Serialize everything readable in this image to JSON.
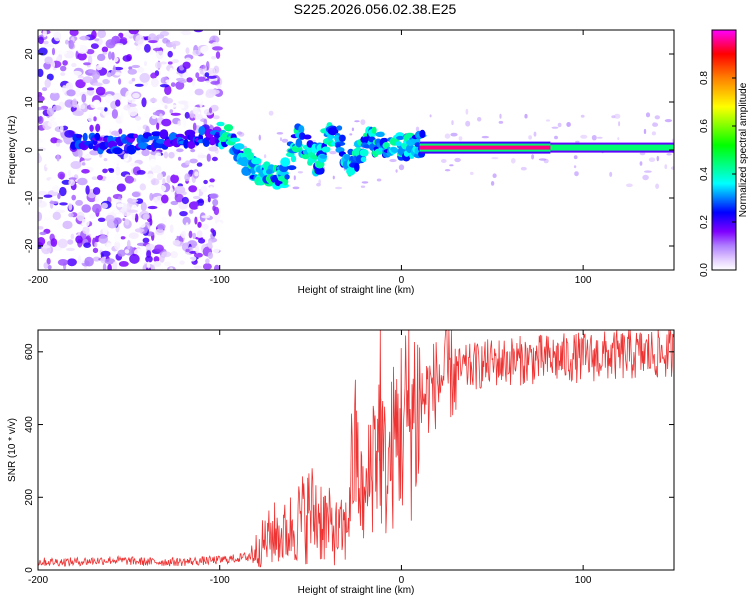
{
  "figure_title": "S225.2026.056.02.38.E25",
  "chart_data": [
    {
      "type": "heatmap",
      "title": "",
      "xlabel": "Height of straight line (km)",
      "ylabel": "Frequency (Hz)",
      "xlim": [
        -200,
        150
      ],
      "ylim": [
        -25,
        25
      ],
      "x_ticks": [
        "-200",
        "-100",
        "0",
        "100"
      ],
      "x_tick_values": [
        -200,
        -100,
        0,
        100
      ],
      "y_ticks": [
        "20",
        "10",
        "0",
        "-10",
        "-20"
      ],
      "y_tick_values": [
        20,
        10,
        0,
        -10,
        -20
      ],
      "colorbar": {
        "label": "Normalized spectral amplitude",
        "range": [
          0,
          1
        ],
        "ticks": [
          "0.0",
          "0.2",
          "0.4",
          "0.6",
          "0.8"
        ],
        "tick_values": [
          0.0,
          0.2,
          0.4,
          0.6,
          0.8
        ],
        "colormap": [
          "#ffffff",
          "#e6d2ff",
          "#b080ff",
          "#7f00ff",
          "#0000ff",
          "#00ffff",
          "#00ff00",
          "#ffff00",
          "#ff8000",
          "#ff0000",
          "#ff00ff"
        ]
      },
      "features": {
        "noise_region_x": [
          -200,
          -100
        ],
        "trace_points": [
          {
            "x": -175,
            "f": 2
          },
          {
            "x": -160,
            "f": 1
          },
          {
            "x": -140,
            "f": 2
          },
          {
            "x": -120,
            "f": 2
          },
          {
            "x": -100,
            "f": 3
          },
          {
            "x": -95,
            "f": 3
          },
          {
            "x": -88,
            "f": 0
          },
          {
            "x": -82,
            "f": -4
          },
          {
            "x": -76,
            "f": -6
          },
          {
            "x": -70,
            "f": -5
          },
          {
            "x": -64,
            "f": -6
          },
          {
            "x": -58,
            "f": 3
          },
          {
            "x": -52,
            "f": 1
          },
          {
            "x": -46,
            "f": -3
          },
          {
            "x": -42,
            "f": 2
          },
          {
            "x": -36,
            "f": 4
          },
          {
            "x": -30,
            "f": -3
          },
          {
            "x": -24,
            "f": -1
          },
          {
            "x": -18,
            "f": 2
          },
          {
            "x": -10,
            "f": 1
          },
          {
            "x": 0,
            "f": 1
          },
          {
            "x": 10,
            "f": 1
          },
          {
            "x": 20,
            "f": 0.5
          },
          {
            "x": 50,
            "f": 0.5
          },
          {
            "x": 82,
            "f": 0.5
          },
          {
            "x": 100,
            "f": 0.5
          },
          {
            "x": 130,
            "f": 0.5
          },
          {
            "x": 150,
            "f": 0.5
          }
        ],
        "strong_line": {
          "x_range": [
            10,
            82
          ],
          "f": 0.5,
          "amplitude": 0.95
        },
        "moderate_line": {
          "x_range": [
            82,
            150
          ],
          "f": 0.5,
          "amplitude": 0.45
        }
      }
    },
    {
      "type": "line",
      "title": "",
      "xlabel": "Height of straight line (km)",
      "ylabel": "SNR (10 * v/v)",
      "xlim": [
        -200,
        150
      ],
      "ylim": [
        0,
        660
      ],
      "x_ticks": [
        "-200",
        "-100",
        "0",
        "100"
      ],
      "x_tick_values": [
        -200,
        -100,
        0,
        100
      ],
      "y_ticks": [
        "0",
        "200",
        "400",
        "600"
      ],
      "y_tick_values": [
        0,
        200,
        400,
        600
      ],
      "color": "#ee3333",
      "series": [
        {
          "name": "SNR",
          "x": [
            -200,
            -180,
            -160,
            -140,
            -120,
            -100,
            -90,
            -85,
            -80,
            -75,
            -70,
            -65,
            -60,
            -55,
            -50,
            -45,
            -40,
            -35,
            -30,
            -27,
            -25,
            -22,
            -20,
            -17,
            -15,
            -12,
            -10,
            -8,
            -5,
            -2,
            0,
            5,
            10,
            15,
            20,
            25,
            30,
            40,
            50,
            60,
            80,
            100,
            120,
            140,
            150
          ],
          "values": [
            20,
            20,
            25,
            20,
            20,
            25,
            30,
            35,
            55,
            80,
            100,
            95,
            120,
            140,
            160,
            150,
            120,
            100,
            110,
            300,
            320,
            200,
            180,
            280,
            350,
            360,
            300,
            250,
            330,
            380,
            400,
            430,
            460,
            490,
            520,
            540,
            545,
            560,
            570,
            575,
            580,
            585,
            590,
            595,
            595
          ]
        }
      ]
    }
  ]
}
